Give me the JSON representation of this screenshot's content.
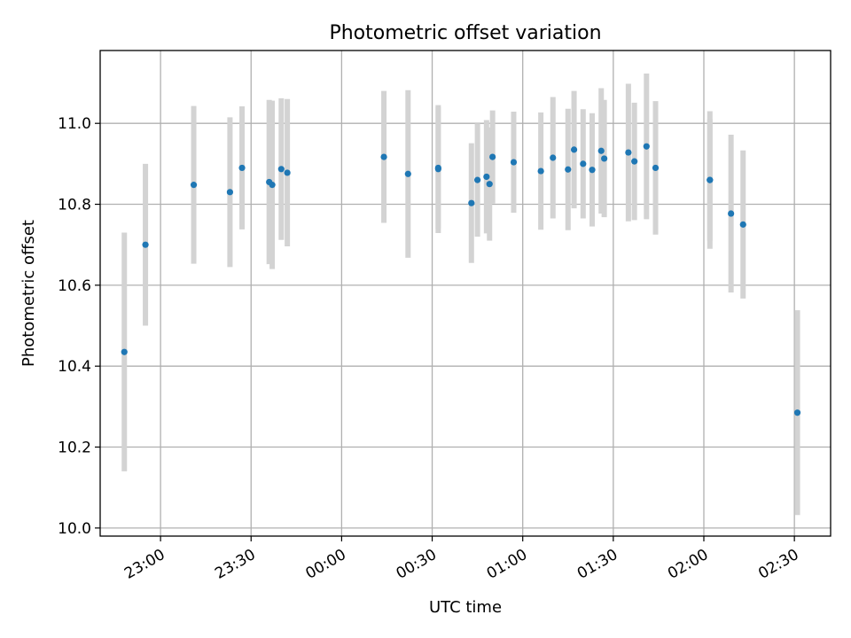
{
  "chart_data": {
    "type": "scatter",
    "title": "Photometric offset variation",
    "xlabel": "UTC time",
    "ylabel": "Photometric offset",
    "grid": true,
    "x_axis_kind": "time (HH:MM, UTC)",
    "xlim": [
      "22:40",
      "02:42"
    ],
    "ylim": [
      9.98,
      11.18
    ],
    "x_ticks": [
      "23:00",
      "23:30",
      "00:00",
      "00:30",
      "01:00",
      "01:30",
      "02:00",
      "02:30"
    ],
    "y_ticks": [
      "10.0",
      "10.2",
      "10.4",
      "10.6",
      "10.8",
      "11.0"
    ],
    "y_tick_values": [
      10.0,
      10.2,
      10.4,
      10.6,
      10.8,
      11.0
    ],
    "colors": {
      "marker": "#1f77b4",
      "errorbar": "#d3d3d3"
    },
    "points": [
      {
        "t": "22:48",
        "y": 10.435,
        "err": 0.295
      },
      {
        "t": "22:55",
        "y": 10.7,
        "err": 0.2
      },
      {
        "t": "23:11",
        "y": 10.848,
        "err": 0.195
      },
      {
        "t": "23:23",
        "y": 10.83,
        "err": 0.185
      },
      {
        "t": "23:27",
        "y": 10.89,
        "err": 0.152
      },
      {
        "t": "23:36",
        "y": 10.855,
        "err": 0.203
      },
      {
        "t": "23:37",
        "y": 10.848,
        "err": 0.208
      },
      {
        "t": "23:40",
        "y": 10.887,
        "err": 0.175
      },
      {
        "t": "23:42",
        "y": 10.878,
        "err": 0.182
      },
      {
        "t": "00:14",
        "y": 10.917,
        "err": 0.163
      },
      {
        "t": "00:22",
        "y": 10.875,
        "err": 0.207
      },
      {
        "t": "00:32",
        "y": 10.89,
        "err": 0.15
      },
      {
        "t": "00:32",
        "y": 10.887,
        "err": 0.158
      },
      {
        "t": "00:43",
        "y": 10.803,
        "err": 0.148
      },
      {
        "t": "00:45",
        "y": 10.86,
        "err": 0.14
      },
      {
        "t": "00:48",
        "y": 10.868,
        "err": 0.14
      },
      {
        "t": "00:49",
        "y": 10.85,
        "err": 0.14
      },
      {
        "t": "00:50",
        "y": 10.917,
        "err": 0.115
      },
      {
        "t": "00:57",
        "y": 10.904,
        "err": 0.125
      },
      {
        "t": "01:06",
        "y": 10.882,
        "err": 0.145
      },
      {
        "t": "01:10",
        "y": 10.915,
        "err": 0.15
      },
      {
        "t": "01:15",
        "y": 10.886,
        "err": 0.15
      },
      {
        "t": "01:17",
        "y": 10.935,
        "err": 0.145
      },
      {
        "t": "01:20",
        "y": 10.9,
        "err": 0.135
      },
      {
        "t": "01:23",
        "y": 10.885,
        "err": 0.14
      },
      {
        "t": "01:26",
        "y": 10.932,
        "err": 0.155
      },
      {
        "t": "01:27",
        "y": 10.913,
        "err": 0.145
      },
      {
        "t": "01:35",
        "y": 10.928,
        "err": 0.17
      },
      {
        "t": "01:37",
        "y": 10.906,
        "err": 0.145
      },
      {
        "t": "01:41",
        "y": 10.943,
        "err": 0.18
      },
      {
        "t": "01:44",
        "y": 10.89,
        "err": 0.165
      },
      {
        "t": "02:02",
        "y": 10.86,
        "err": 0.17
      },
      {
        "t": "02:02",
        "y": 10.86,
        "err": 0.15
      },
      {
        "t": "02:09",
        "y": 10.777,
        "err": 0.195
      },
      {
        "t": "02:13",
        "y": 10.75,
        "err": 0.183
      },
      {
        "t": "02:31",
        "y": 10.285,
        "err": 0.253
      }
    ]
  }
}
